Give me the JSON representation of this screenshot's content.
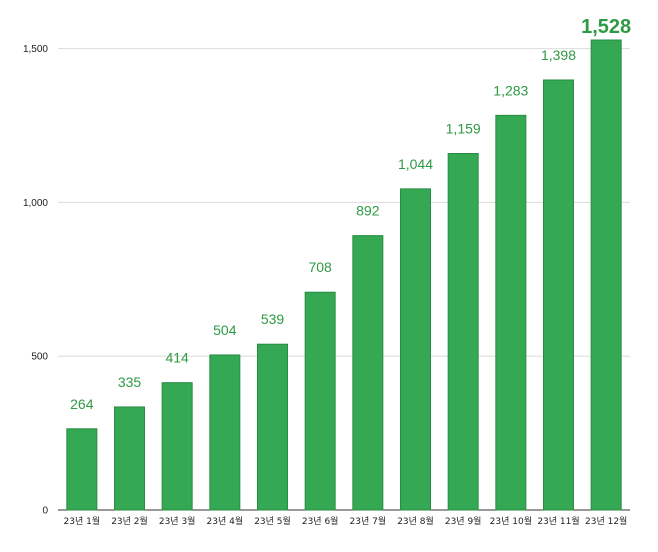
{
  "chart_data": {
    "type": "bar",
    "title": "",
    "xlabel": "",
    "ylabel": "",
    "categories": [
      "23년 1월",
      "23년 2월",
      "23년 3월",
      "23년 4월",
      "23년 5월",
      "23년 6월",
      "23년 7월",
      "23년 8월",
      "23년 9월",
      "23년 10월",
      "23년 11월",
      "23년 12월"
    ],
    "values": [
      264,
      335,
      414,
      504,
      539,
      708,
      892,
      1044,
      1159,
      1283,
      1398,
      1528
    ],
    "value_labels": [
      "264",
      "335",
      "414",
      "504",
      "539",
      "708",
      "892",
      "1,044",
      "1,159",
      "1,283",
      "1,398",
      "1,528"
    ],
    "emphasized_index": 11,
    "ylim": [
      0,
      1528
    ],
    "yticks": [
      0,
      500,
      1000,
      1500
    ],
    "ytick_labels": [
      "0",
      "500",
      "1,000",
      "1,500"
    ],
    "grid": true,
    "legend": "none",
    "colors": {
      "bar": "#34a853",
      "bar_edge": "#2a8c44",
      "label": "#2e9a44"
    }
  }
}
